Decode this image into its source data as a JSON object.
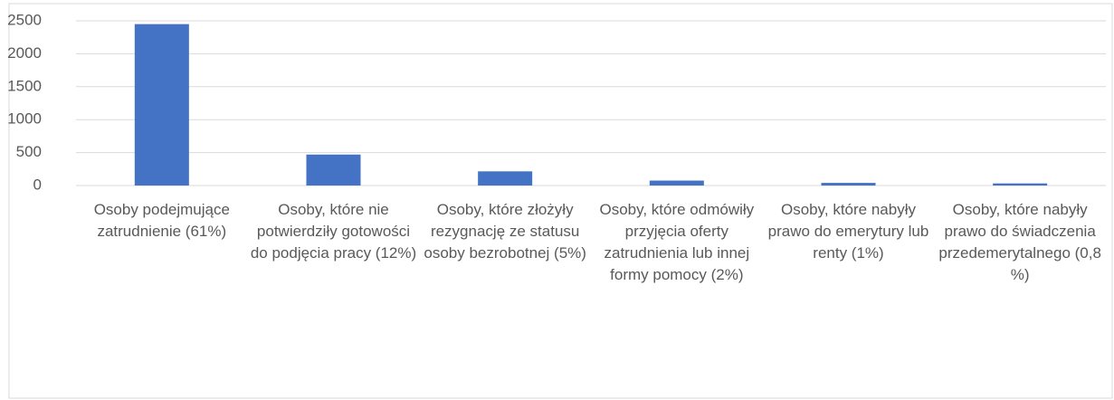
{
  "chart_data": {
    "type": "bar",
    "categories": [
      "Osoby podejmujące zatrudnienie (61%)",
      "Osoby, które nie potwierdziły gotowości do podjęcia pracy (12%)",
      "Osoby, które złożyły rezygnację ze statusu osoby bezrobotnej (5%)",
      "Osoby, które odmówiły przyjęcia oferty zatrudnienia lub innej formy pomocy (2%)",
      "Osoby, które nabyły prawo do emerytury lub renty (1%)",
      "Osoby, które nabyły prawo do świadczenia przedemerytalnego (0,8 %)"
    ],
    "values": [
      2450,
      470,
      215,
      75,
      40,
      32
    ],
    "color": "#4472c4",
    "ylim": [
      0,
      2500
    ],
    "yticks": [
      0,
      500,
      1000,
      1500,
      2000,
      2500
    ],
    "grid": true
  }
}
